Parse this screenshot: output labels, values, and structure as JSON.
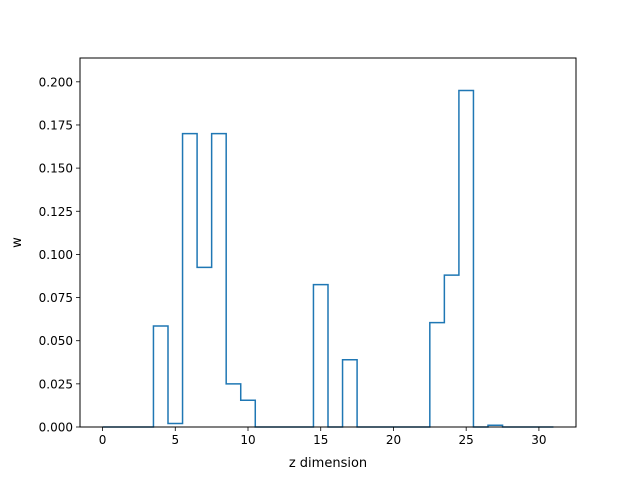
{
  "chart_data": {
    "type": "step",
    "title": "",
    "xlabel": "z dimension",
    "ylabel": "w",
    "xlim": [
      -1.55,
      32.55
    ],
    "ylim": [
      0,
      0.2138
    ],
    "x_ticks": [
      0,
      5,
      10,
      15,
      20,
      25,
      30
    ],
    "y_ticks": [
      0.0,
      0.025,
      0.05,
      0.075,
      0.1,
      0.125,
      0.15,
      0.175,
      0.2
    ],
    "y_tick_labels": [
      "0.000",
      "0.025",
      "0.050",
      "0.075",
      "0.100",
      "0.125",
      "0.150",
      "0.175",
      "0.200"
    ],
    "x_tick_labels": [
      "0",
      "5",
      "10",
      "15",
      "20",
      "25",
      "30"
    ],
    "step_where": "mid",
    "grid": false,
    "series": [
      {
        "color": "#1f77b4",
        "x": [
          0,
          1,
          2,
          3,
          4,
          5,
          6,
          7,
          8,
          9,
          10,
          11,
          12,
          13,
          14,
          15,
          16,
          17,
          18,
          19,
          20,
          21,
          22,
          23,
          24,
          25,
          26,
          27,
          28,
          29,
          30,
          31
        ],
        "y": [
          0,
          0,
          0,
          0,
          0.0585,
          0.002,
          0.17,
          0.0925,
          0.17,
          0.025,
          0.0155,
          0,
          0,
          0,
          0,
          0.0825,
          0,
          0.039,
          0,
          0,
          0,
          0,
          0,
          0.0605,
          0.088,
          0.195,
          0,
          0.001,
          0,
          0,
          0,
          0
        ]
      }
    ]
  }
}
